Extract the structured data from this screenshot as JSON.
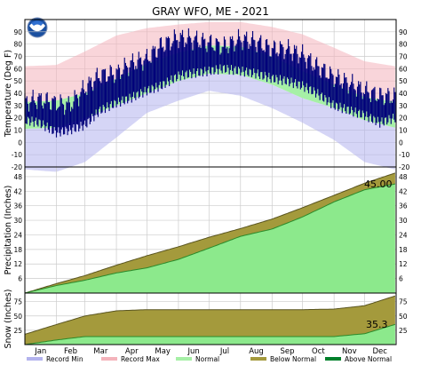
{
  "chart_data": {
    "type": "area",
    "title": "GRAY  WFO, ME - 2021",
    "months": [
      "Jan",
      "Feb",
      "Mar",
      "Apr",
      "May",
      "Jun",
      "Jul",
      "Aug",
      "Sep",
      "Oct",
      "Nov",
      "Dec"
    ],
    "panels": [
      {
        "id": "temperature",
        "ylabel": "Temperature (Deg F)",
        "ylim": [
          -20,
          100
        ],
        "yticks": [
          -20,
          -10,
          0,
          10,
          20,
          30,
          40,
          50,
          60,
          70,
          80,
          90
        ],
        "normal_high": [
          [
            1,
            33
          ],
          [
            32,
            34
          ],
          [
            60,
            40
          ],
          [
            91,
            52
          ],
          [
            121,
            64
          ],
          [
            152,
            73
          ],
          [
            182,
            79
          ],
          [
            213,
            78
          ],
          [
            244,
            70
          ],
          [
            274,
            58
          ],
          [
            305,
            47
          ],
          [
            335,
            37
          ],
          [
            365,
            33
          ]
        ],
        "normal_low": [
          [
            1,
            11
          ],
          [
            32,
            12
          ],
          [
            60,
            20
          ],
          [
            91,
            30
          ],
          [
            121,
            40
          ],
          [
            152,
            50
          ],
          [
            182,
            56
          ],
          [
            213,
            55
          ],
          [
            244,
            47
          ],
          [
            274,
            36
          ],
          [
            305,
            28
          ],
          [
            335,
            18
          ],
          [
            365,
            12
          ]
        ],
        "record_max": [
          [
            1,
            62
          ],
          [
            32,
            63
          ],
          [
            60,
            74
          ],
          [
            91,
            87
          ],
          [
            121,
            93
          ],
          [
            152,
            96
          ],
          [
            182,
            98
          ],
          [
            213,
            98
          ],
          [
            244,
            94
          ],
          [
            274,
            88
          ],
          [
            305,
            77
          ],
          [
            335,
            66
          ],
          [
            365,
            62
          ]
        ],
        "record_min": [
          [
            1,
            -22
          ],
          [
            32,
            -24
          ],
          [
            60,
            -16
          ],
          [
            91,
            4
          ],
          [
            121,
            24
          ],
          [
            152,
            34
          ],
          [
            182,
            42
          ],
          [
            213,
            38
          ],
          [
            244,
            28
          ],
          [
            274,
            16
          ],
          [
            305,
            2
          ],
          [
            335,
            -16
          ],
          [
            365,
            -22
          ]
        ],
        "observed_high": [
          [
            1,
            33
          ],
          [
            15,
            35
          ],
          [
            32,
            32
          ],
          [
            45,
            30
          ],
          [
            60,
            44
          ],
          [
            75,
            55
          ],
          [
            91,
            56
          ],
          [
            105,
            64
          ],
          [
            121,
            68
          ],
          [
            135,
            79
          ],
          [
            152,
            85
          ],
          [
            165,
            84
          ],
          [
            182,
            81
          ],
          [
            196,
            78
          ],
          [
            213,
            84
          ],
          [
            228,
            82
          ],
          [
            244,
            76
          ],
          [
            258,
            76
          ],
          [
            274,
            71
          ],
          [
            288,
            62
          ],
          [
            305,
            53
          ],
          [
            320,
            48
          ],
          [
            335,
            42
          ],
          [
            350,
            38
          ],
          [
            365,
            37
          ]
        ],
        "observed_low": [
          [
            1,
            18
          ],
          [
            15,
            16
          ],
          [
            32,
            8
          ],
          [
            45,
            10
          ],
          [
            60,
            14
          ],
          [
            75,
            26
          ],
          [
            91,
            32
          ],
          [
            105,
            36
          ],
          [
            121,
            42
          ],
          [
            135,
            46
          ],
          [
            152,
            54
          ],
          [
            165,
            56
          ],
          [
            182,
            58
          ],
          [
            196,
            60
          ],
          [
            213,
            58
          ],
          [
            228,
            56
          ],
          [
            244,
            52
          ],
          [
            258,
            50
          ],
          [
            274,
            46
          ],
          [
            288,
            40
          ],
          [
            305,
            30
          ],
          [
            320,
            26
          ],
          [
            335,
            22
          ],
          [
            350,
            16
          ],
          [
            365,
            20
          ]
        ]
      },
      {
        "id": "precipitation",
        "ylabel": "Precipitation (Inches)",
        "ylim": [
          0,
          52
        ],
        "yticks": [
          6,
          12,
          18,
          24,
          30,
          36,
          42,
          48
        ],
        "normal_cumulative": [
          [
            1,
            0
          ],
          [
            32,
            3.9
          ],
          [
            60,
            7.2
          ],
          [
            91,
            11.5
          ],
          [
            121,
            15.4
          ],
          [
            152,
            19.1
          ],
          [
            182,
            23.0
          ],
          [
            213,
            26.6
          ],
          [
            244,
            30.5
          ],
          [
            274,
            35.2
          ],
          [
            305,
            40.3
          ],
          [
            335,
            45.3
          ],
          [
            365,
            49.5
          ]
        ],
        "observed_cumulative": [
          [
            1,
            0
          ],
          [
            32,
            3.1
          ],
          [
            60,
            5.3
          ],
          [
            91,
            8.3
          ],
          [
            121,
            10.4
          ],
          [
            152,
            13.9
          ],
          [
            182,
            18.5
          ],
          [
            213,
            23.4
          ],
          [
            244,
            26.4
          ],
          [
            274,
            31.4
          ],
          [
            305,
            37.6
          ],
          [
            335,
            42.6
          ],
          [
            365,
            45.0
          ]
        ],
        "total_label": "45.00"
      },
      {
        "id": "snow",
        "ylabel": "Snow (Inches)",
        "ylim": [
          0,
          90
        ],
        "yticks": [
          25,
          50,
          75
        ],
        "normal_cumulative": [
          [
            1,
            18
          ],
          [
            32,
            35
          ],
          [
            60,
            50
          ],
          [
            91,
            59
          ],
          [
            121,
            61
          ],
          [
            152,
            61
          ],
          [
            182,
            61
          ],
          [
            213,
            61
          ],
          [
            244,
            61
          ],
          [
            274,
            61
          ],
          [
            305,
            62
          ],
          [
            335,
            68
          ],
          [
            365,
            85
          ]
        ],
        "observed_cumulative": [
          [
            1,
            0
          ],
          [
            32,
            8
          ],
          [
            60,
            14
          ],
          [
            91,
            14
          ],
          [
            121,
            14
          ],
          [
            152,
            14
          ],
          [
            182,
            14
          ],
          [
            213,
            14
          ],
          [
            244,
            14
          ],
          [
            274,
            14
          ],
          [
            305,
            14
          ],
          [
            335,
            19
          ],
          [
            365,
            35.3
          ]
        ],
        "total_label": "35.3"
      }
    ],
    "legend": [
      "Record Min",
      "Record Max",
      "Normal",
      "Below Normal",
      "Above Normal"
    ],
    "colors": {
      "record_min": "#b3b3ee",
      "record_max": "#f4b3bb",
      "normal": "#a6f0a6",
      "below_normal": "#a49a3c",
      "above_normal": "#00802b",
      "observed": "#00007a",
      "precip_normal_fill": "#8ce98c",
      "grid": "#cccccc"
    }
  }
}
